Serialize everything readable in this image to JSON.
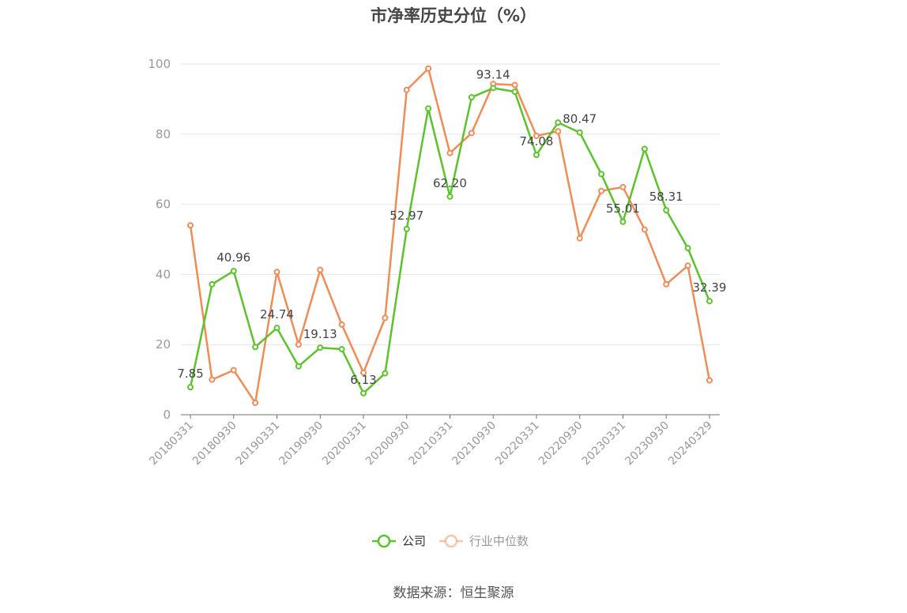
{
  "title": "市净率历史分位（%）",
  "source": "数据来源：恒生聚源",
  "chart_data": {
    "type": "line",
    "title": "市净率历史分位（%）",
    "ylim": [
      0,
      100
    ],
    "yticks": [
      0,
      20,
      40,
      60,
      80,
      100
    ],
    "grid": true,
    "legend_position": "bottom-center",
    "x": [
      "20180331",
      "20180630",
      "20180930",
      "20181231",
      "20190331",
      "20190630",
      "20190930",
      "20191231",
      "20200331",
      "20200630",
      "20200930",
      "20201231",
      "20210331",
      "20210630",
      "20210930",
      "20211231",
      "20220331",
      "20220630",
      "20220930",
      "20221231",
      "20230331",
      "20230630",
      "20230930",
      "20231231",
      "20240329"
    ],
    "xtick_labels": [
      "20180331",
      "20180930",
      "20190331",
      "20190930",
      "20200331",
      "20200930",
      "20210331",
      "20210930",
      "20220331",
      "20220930",
      "20230331",
      "20230930",
      "20240329"
    ],
    "series": [
      {
        "name": "公司",
        "color": "#5ac42a",
        "values": [
          7.85,
          37.2,
          40.96,
          19.3,
          24.74,
          13.8,
          19.13,
          18.7,
          6.13,
          11.8,
          52.97,
          87.3,
          62.2,
          90.5,
          93.14,
          92.1,
          74.08,
          83.3,
          80.47,
          68.6,
          55.01,
          75.8,
          58.31,
          47.5,
          32.39
        ],
        "labels": {
          "0": "7.85",
          "2": "40.96",
          "4": "24.74",
          "6": "19.13",
          "8": "6.13",
          "10": "52.97",
          "12": "62.20",
          "14": "93.14",
          "16": "74.08",
          "18": "80.47",
          "20": "55.01",
          "22": "58.31",
          "24": "32.39"
        }
      },
      {
        "name": "行业中位数",
        "color": "#f08c55",
        "values": [
          54.0,
          10.0,
          12.7,
          3.4,
          40.7,
          20.0,
          41.3,
          25.7,
          12.0,
          27.6,
          92.6,
          98.7,
          74.6,
          80.3,
          94.3,
          94.0,
          79.5,
          80.8,
          50.3,
          63.8,
          64.9,
          52.8,
          37.2,
          42.5,
          9.8
        ]
      }
    ]
  }
}
